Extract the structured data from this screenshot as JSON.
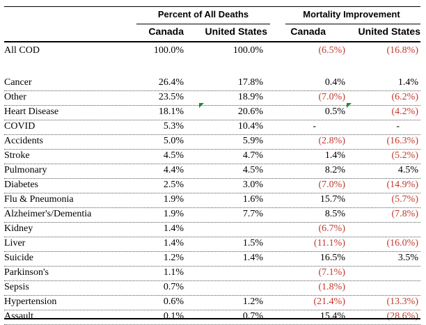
{
  "header": {
    "group1": "Percent of All Deaths",
    "group2": "Mortality Improvement",
    "col1": "Canada",
    "col2": "United States",
    "col3": "Canada",
    "col4": "United States"
  },
  "rows": [
    {
      "label": "All COD",
      "c1": "100.0%",
      "c2": "100.0%",
      "c3": "(6.5%)",
      "c4": "(16.8%)"
    },
    {
      "label": "Cancer",
      "c1": "26.4%",
      "c2": "17.8%",
      "c3": "0.4%",
      "c4": "1.4%"
    },
    {
      "label": "Other",
      "c1": "23.5%",
      "c2": "18.9%",
      "c3": "(7.0%)",
      "c4": "(6.2%)"
    },
    {
      "label": "Heart Disease",
      "c1": "18.1%",
      "c2": "20.6%",
      "c3": "0.5%",
      "c4": "(4.2%)"
    },
    {
      "label": "COVID",
      "c1": "5.3%",
      "c2": "10.4%",
      "c3": "-",
      "c4": "-"
    },
    {
      "label": "Accidents",
      "c1": "5.0%",
      "c2": "5.9%",
      "c3": "(2.8%)",
      "c4": "(16.3%)"
    },
    {
      "label": "Stroke",
      "c1": "4.5%",
      "c2": "4.7%",
      "c3": "1.4%",
      "c4": "(5.2%)"
    },
    {
      "label": "Pulmonary",
      "c1": "4.4%",
      "c2": "4.5%",
      "c3": "8.2%",
      "c4": "4.5%"
    },
    {
      "label": "Diabetes",
      "c1": "2.5%",
      "c2": "3.0%",
      "c3": "(7.0%)",
      "c4": "(14.9%)"
    },
    {
      "label": "Flu & Pneumonia",
      "c1": "1.9%",
      "c2": "1.6%",
      "c3": "15.7%",
      "c4": "(5.7%)"
    },
    {
      "label": "Alzheimer's/Dementia",
      "c1": "1.9%",
      "c2": "7.7%",
      "c3": "8.5%",
      "c4": "(7.8%)"
    },
    {
      "label": "Kidney",
      "c1": "1.4%",
      "c2": "",
      "c3": "(6.7%)",
      "c4": ""
    },
    {
      "label": "Liver",
      "c1": "1.4%",
      "c2": "1.5%",
      "c3": "(11.1%)",
      "c4": "(16.0%)"
    },
    {
      "label": "Suicide",
      "c1": "1.2%",
      "c2": "1.4%",
      "c3": "16.5%",
      "c4": "3.5%"
    },
    {
      "label": "Parkinson's",
      "c1": "1.1%",
      "c2": "",
      "c3": "(7.1%)",
      "c4": ""
    },
    {
      "label": "Sepsis",
      "c1": "0.7%",
      "c2": "",
      "c3": "(1.8%)",
      "c4": ""
    },
    {
      "label": "Hypertension",
      "c1": "0.6%",
      "c2": "1.2%",
      "c3": "(21.4%)",
      "c4": "(13.3%)"
    },
    {
      "label": "Assault",
      "c1": "0.1%",
      "c2": "0.7%",
      "c3": "15.4%",
      "c4": "(28.6%)"
    }
  ],
  "colors": {
    "negative": "#c0392b",
    "comment_marker": "#1e8a2e"
  }
}
